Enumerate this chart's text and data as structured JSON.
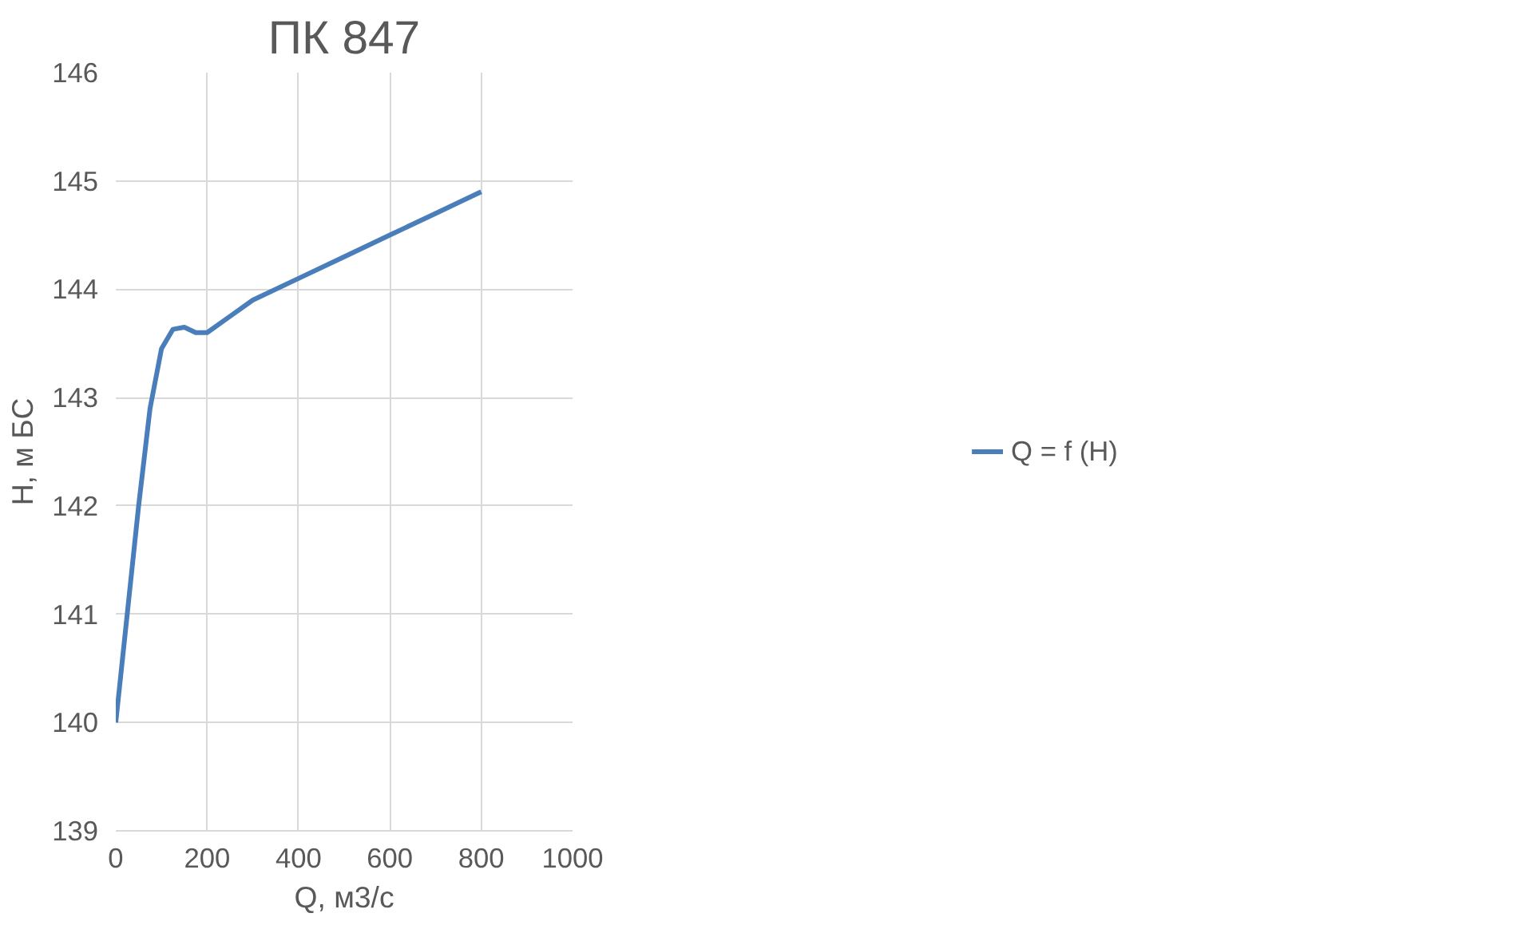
{
  "chart_data": {
    "type": "line",
    "title": "ПК 847",
    "xlabel": "Q, м3/с",
    "ylabel": "H, м БС",
    "series": [
      {
        "name": "Q = f (H)",
        "color": "#4a7ebb",
        "x": [
          0,
          25,
          50,
          75,
          100,
          125,
          150,
          175,
          200,
          250,
          300,
          400,
          500,
          600,
          700,
          800
        ],
        "values": [
          140,
          141,
          142,
          142.9,
          143.45,
          143.63,
          143.65,
          143.6,
          143.6,
          143.75,
          143.9,
          144.1,
          144.3,
          144.5,
          144.7,
          144.9
        ]
      }
    ],
    "xlim": [
      0,
      1000
    ],
    "xticks": [
      0,
      200,
      400,
      600,
      800,
      1000
    ],
    "ylim": [
      139,
      146
    ],
    "yticks": [
      139,
      140,
      141,
      142,
      143,
      144,
      145,
      146
    ],
    "grid": true,
    "legend": "right",
    "marker": "none",
    "line_style": "solid"
  }
}
